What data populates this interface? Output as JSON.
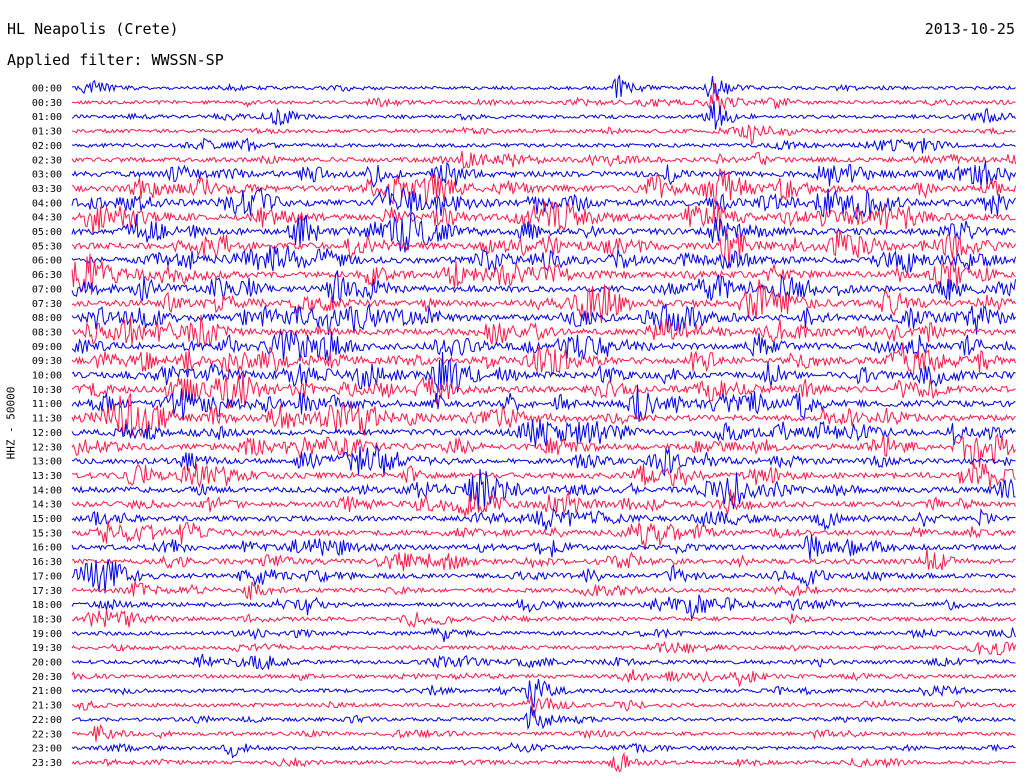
{
  "header": {
    "station": "HL Neapolis (Crete)",
    "filter": "Applied filter: WWSSN-SP",
    "date": "2013-10-25"
  },
  "chart_data": {
    "type": "line",
    "title": "HL Neapolis (Crete)",
    "subtitle": "Applied filter: WWSSN-SP",
    "date": "2013-10-25",
    "ylabel": "HHZ - 50000",
    "colors": {
      "even_rows": "#0000ee",
      "odd_rows": "#ff1a4a"
    },
    "rows": [
      "00:00",
      "00:30",
      "01:00",
      "01:30",
      "02:00",
      "02:30",
      "03:00",
      "03:30",
      "04:00",
      "04:30",
      "05:00",
      "05:30",
      "06:00",
      "06:30",
      "07:00",
      "07:30",
      "08:00",
      "08:30",
      "09:00",
      "09:30",
      "10:00",
      "10:30",
      "11:00",
      "11:30",
      "12:00",
      "12:30",
      "13:00",
      "13:30",
      "14:00",
      "14:30",
      "15:00",
      "15:30",
      "16:00",
      "16:30",
      "17:00",
      "17:30",
      "18:00",
      "18:30",
      "19:00",
      "19:30",
      "20:00",
      "20:30",
      "21:00",
      "21:30",
      "22:00",
      "22:30",
      "23:00",
      "23:30"
    ],
    "activity": [
      0.25,
      0.3,
      0.3,
      0.3,
      0.35,
      0.55,
      0.85,
      0.9,
      1.0,
      1.0,
      1.0,
      1.0,
      1.0,
      1.0,
      1.0,
      1.0,
      1.0,
      1.0,
      1.0,
      1.0,
      1.0,
      1.0,
      1.0,
      1.0,
      0.9,
      0.9,
      0.85,
      0.85,
      0.85,
      0.8,
      0.75,
      0.75,
      0.7,
      0.65,
      0.6,
      0.5,
      0.45,
      0.45,
      0.4,
      0.4,
      0.4,
      0.35,
      0.35,
      0.35,
      0.3,
      0.3,
      0.3,
      0.3
    ],
    "events": [
      {
        "row": 0,
        "x": 0.02,
        "amp": 1.4
      },
      {
        "row": 0,
        "x": 0.58,
        "amp": 1.8
      },
      {
        "row": 0,
        "x": 0.68,
        "amp": 2.2
      },
      {
        "row": 1,
        "x": 0.68,
        "amp": 3.0
      },
      {
        "row": 1,
        "x": 0.74,
        "amp": 1.2
      },
      {
        "row": 2,
        "x": 0.68,
        "amp": 2.6
      },
      {
        "row": 2,
        "x": 0.22,
        "amp": 1.5
      },
      {
        "row": 2,
        "x": 0.97,
        "amp": 1.0
      },
      {
        "row": 3,
        "x": 0.72,
        "amp": 1.6
      },
      {
        "row": 4,
        "x": 0.18,
        "amp": 1.2
      },
      {
        "row": 4,
        "x": 0.9,
        "amp": 1.0
      },
      {
        "row": 6,
        "x": 0.32,
        "amp": 1.6
      },
      {
        "row": 7,
        "x": 0.34,
        "amp": 2.2
      },
      {
        "row": 8,
        "x": 0.33,
        "amp": 2.4
      },
      {
        "row": 9,
        "x": 0.02,
        "amp": 2.0
      },
      {
        "row": 13,
        "x": 0.02,
        "amp": 2.4
      },
      {
        "row": 16,
        "x": 0.3,
        "amp": 1.8
      },
      {
        "row": 18,
        "x": 0.27,
        "amp": 2.0
      },
      {
        "row": 20,
        "x": 0.74,
        "amp": 2.0
      },
      {
        "row": 22,
        "x": 0.72,
        "amp": 1.6
      },
      {
        "row": 33,
        "x": 0.91,
        "amp": 2.4
      },
      {
        "row": 34,
        "x": 0.2,
        "amp": 1.6
      },
      {
        "row": 34,
        "x": 0.64,
        "amp": 1.6
      },
      {
        "row": 34,
        "x": 0.78,
        "amp": 1.4
      },
      {
        "row": 35,
        "x": 0.19,
        "amp": 1.4
      },
      {
        "row": 36,
        "x": 0.25,
        "amp": 1.4
      },
      {
        "row": 36,
        "x": 0.66,
        "amp": 1.8
      },
      {
        "row": 37,
        "x": 0.36,
        "amp": 1.2
      },
      {
        "row": 38,
        "x": 0.39,
        "amp": 1.4
      },
      {
        "row": 39,
        "x": 0.96,
        "amp": 1.6
      },
      {
        "row": 40,
        "x": 0.14,
        "amp": 1.4
      },
      {
        "row": 40,
        "x": 0.2,
        "amp": 1.4
      },
      {
        "row": 41,
        "x": 0.59,
        "amp": 1.4
      },
      {
        "row": 41,
        "x": 0.71,
        "amp": 1.4
      },
      {
        "row": 42,
        "x": 0.49,
        "amp": 2.4
      },
      {
        "row": 43,
        "x": 0.49,
        "amp": 1.8
      },
      {
        "row": 44,
        "x": 0.49,
        "amp": 2.4
      },
      {
        "row": 45,
        "x": 0.03,
        "amp": 1.6
      },
      {
        "row": 46,
        "x": 0.17,
        "amp": 1.2
      },
      {
        "row": 47,
        "x": 0.58,
        "amp": 1.8
      }
    ]
  }
}
